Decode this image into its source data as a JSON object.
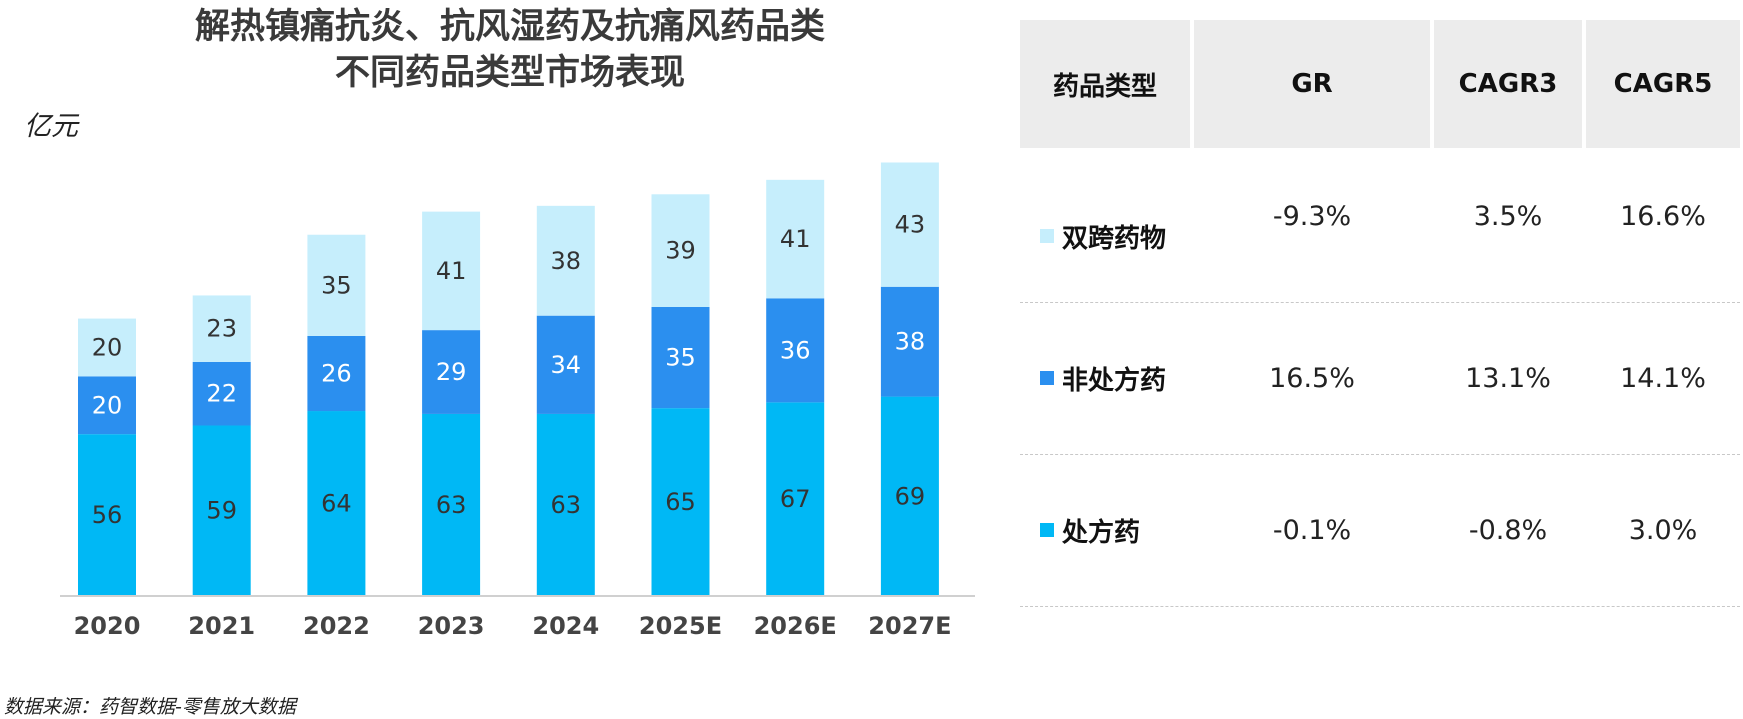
{
  "title": {
    "line1": "解热镇痛抗炎、抗风湿药及抗痛风药品类",
    "line2": "不同药品类型市场表现"
  },
  "unit_label": "亿元",
  "source_note": "数据来源：药智数据-零售放大数据",
  "chart_data": {
    "type": "bar",
    "stacked": true,
    "title": "解热镇痛抗炎、抗风湿药及抗痛风药品类 不同药品类型市场表现",
    "ylabel": "亿元",
    "categories": [
      "2020",
      "2021",
      "2022",
      "2023",
      "2024",
      "2025E",
      "2026E",
      "2027E"
    ],
    "series": [
      {
        "name": "处方药",
        "color": "#00b8f5",
        "values": [
          56,
          59,
          64,
          63,
          63,
          65,
          67,
          69
        ]
      },
      {
        "name": "非处方药",
        "color": "#2b8fef",
        "values": [
          20,
          22,
          26,
          29,
          34,
          35,
          36,
          38
        ]
      },
      {
        "name": "双跨药物",
        "color": "#c6eefc",
        "values": [
          20,
          23,
          35,
          41,
          38,
          39,
          41,
          43
        ]
      }
    ],
    "ylim": [
      0,
      150
    ],
    "grid": false,
    "legend": "none"
  },
  "table": {
    "headers": [
      "药品类型",
      "GR",
      "CAGR3",
      "CAGR5"
    ],
    "rows": [
      {
        "name": "双跨药物",
        "color": "#c6eefc",
        "gr": "-9.3%",
        "cagr3": "3.5%",
        "cagr5": "16.6%"
      },
      {
        "name": "非处方药",
        "color": "#2b8fef",
        "gr": "16.5%",
        "cagr3": "13.1%",
        "cagr5": "14.1%"
      },
      {
        "name": "处方药",
        "color": "#00b8f5",
        "gr": "-0.1%",
        "cagr3": "-0.8%",
        "cagr5": "3.0%"
      }
    ]
  }
}
